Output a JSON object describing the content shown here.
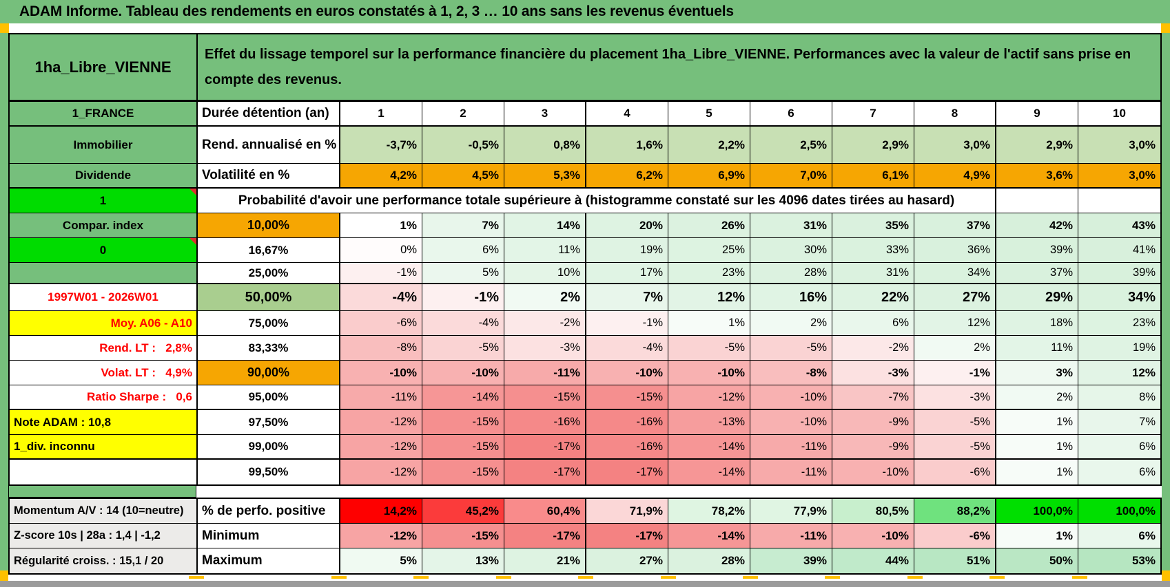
{
  "title": "ADAM Informe. Tableau des rendements en euros constatés à 1, 2, 3 … 10 ans sans les revenus éventuels",
  "asset": {
    "name": "1ha_Libre_VIENNE",
    "description": "Effet du lissage temporel sur la performance financière du placement 1ha_Libre_VIENNE. Performances avec la valeur de l'actif sans prise en compte des revenus."
  },
  "colors": {
    "frame_green": "#76BF7C",
    "bright_green": "#00DC00",
    "orange": "#F6A602",
    "yellow": "#FFFF00",
    "red_text": "#FF0000",
    "annualized_bg": "#C8E0B4",
    "pct50_bg": "#A9CE8F",
    "gray_label_bg": "#ECEBE9",
    "page_break_marker": "#FFC000",
    "bottom_bar": "#9B9B9B"
  },
  "table": {
    "rows": [
      {
        "type": "cols",
        "rcls": "r-hdr",
        "bold": true,
        "left": {
          "text": "1_FRANCE",
          "cls": "l-green"
        },
        "mid": {
          "text": "Durée détention (an)",
          "cls": "m-name"
        },
        "cols": [
          "1",
          "2",
          "3",
          "4",
          "5",
          "6",
          "7",
          "8",
          "9",
          "10"
        ],
        "thickB": true
      },
      {
        "type": "cells",
        "rcls": "r-tall",
        "bold": true,
        "left": {
          "text": "Immobilier",
          "cls": "l-green"
        },
        "mid": {
          "text": "Rend. annualisé en %",
          "cls": "m-name"
        },
        "cells": [
          [
            "-3,7%",
            "#C8E0B4"
          ],
          [
            "-0,5%",
            "#C8E0B4"
          ],
          [
            "0,8%",
            "#C8E0B4"
          ],
          [
            "1,6%",
            "#C8E0B4"
          ],
          [
            "2,2%",
            "#C8E0B4"
          ],
          [
            "2,5%",
            "#C8E0B4"
          ],
          [
            "2,9%",
            "#C8E0B4"
          ],
          [
            "3,0%",
            "#C8E0B4"
          ],
          [
            "2,9%",
            "#C8E0B4"
          ],
          [
            "3,0%",
            "#C8E0B4"
          ]
        ]
      },
      {
        "type": "cells",
        "rcls": "r-std",
        "bold": true,
        "thickB": true,
        "left": {
          "text": "Dividende",
          "cls": "l-green"
        },
        "mid": {
          "text": "Volatilité en %",
          "cls": "m-name"
        },
        "cells": [
          [
            "4,2%",
            "#F6A602"
          ],
          [
            "4,5%",
            "#F6A602"
          ],
          [
            "5,3%",
            "#F6A602"
          ],
          [
            "6,2%",
            "#F6A602"
          ],
          [
            "6,9%",
            "#F6A602"
          ],
          [
            "7,0%",
            "#F6A602"
          ],
          [
            "6,1%",
            "#F6A602"
          ],
          [
            "4,9%",
            "#F6A602"
          ],
          [
            "3,6%",
            "#F6A602"
          ],
          [
            "3,0%",
            "#F6A602"
          ]
        ]
      },
      {
        "type": "merged",
        "rcls": "r-std",
        "left": {
          "text": "1",
          "cls": "l-bright",
          "comment": true
        },
        "merged_text": "Probabilité d'avoir une performance totale supérieure à (histogramme constaté sur les 4096 dates tirées au hasard)",
        "trailing": [
          [
            "",
            ""
          ],
          [
            "",
            ""
          ]
        ]
      },
      {
        "type": "cells",
        "rcls": "r-std",
        "bold": true,
        "left": {
          "text": "Compar. index",
          "cls": "l-green"
        },
        "mid": {
          "text": "10,00%",
          "cls": "m-orange"
        },
        "cells": [
          [
            "1%",
            "#FFFFFF"
          ],
          [
            "7%",
            "#E8F6EB"
          ],
          [
            "14%",
            "#E1F4E5"
          ],
          [
            "20%",
            "#DEF3E2"
          ],
          [
            "26%",
            "#DCF2E0"
          ],
          [
            "31%",
            "#DBF2DF"
          ],
          [
            "35%",
            "#DAF1DE"
          ],
          [
            "37%",
            "#D9F1DD"
          ],
          [
            "42%",
            "#D7F0DB"
          ],
          [
            "43%",
            "#D7F0DB"
          ]
        ]
      },
      {
        "type": "cells",
        "rcls": "r-std",
        "left": {
          "text": "0",
          "cls": "l-bright",
          "comment": true
        },
        "mid": {
          "text": "16,67%",
          "cls": "m-pct"
        },
        "cells": [
          [
            "0%",
            "#FFFCFC"
          ],
          [
            "6%",
            "#E9F7EC"
          ],
          [
            "11%",
            "#E3F5E7"
          ],
          [
            "19%",
            "#DFF3E3"
          ],
          [
            "25%",
            "#DDF3E1"
          ],
          [
            "30%",
            "#DBF2DF"
          ],
          [
            "33%",
            "#DAF2DE"
          ],
          [
            "36%",
            "#D9F1DD"
          ],
          [
            "39%",
            "#D8F1DC"
          ],
          [
            "41%",
            "#D8F0DC"
          ]
        ]
      },
      {
        "type": "cells",
        "rcls": "r-short",
        "thickB": true,
        "left": {
          "text": "",
          "cls": "l-green"
        },
        "mid": {
          "text": "25,00%",
          "cls": "m-pct"
        },
        "cells": [
          [
            "-1%",
            "#FDF0F0"
          ],
          [
            "5%",
            "#EBF7EE"
          ],
          [
            "10%",
            "#E4F5E7"
          ],
          [
            "17%",
            "#E0F4E4"
          ],
          [
            "23%",
            "#DDF3E1"
          ],
          [
            "28%",
            "#DCF2E0"
          ],
          [
            "31%",
            "#DBF2DF"
          ],
          [
            "34%",
            "#DAF2DE"
          ],
          [
            "37%",
            "#D9F1DD"
          ],
          [
            "39%",
            "#D8F1DC"
          ]
        ]
      },
      {
        "type": "cells",
        "rcls": "r-big",
        "bold": true,
        "left": {
          "text": "1997W01 - 2026W01",
          "cls": "l-redwhite"
        },
        "mid": {
          "text": "50,00%",
          "cls": "m-green50"
        },
        "cells": [
          [
            "-4%",
            "#FBDADA"
          ],
          [
            "-1%",
            "#FDF0F0"
          ],
          [
            "2%",
            "#F1FAF3"
          ],
          [
            "7%",
            "#E8F6EB"
          ],
          [
            "12%",
            "#E2F4E6"
          ],
          [
            "16%",
            "#E0F4E4"
          ],
          [
            "22%",
            "#DEF3E2"
          ],
          [
            "27%",
            "#DCF2E0"
          ],
          [
            "29%",
            "#DBF2DF"
          ],
          [
            "34%",
            "#DAF2DE"
          ]
        ]
      },
      {
        "type": "cells",
        "rcls": "r-std",
        "left": {
          "text": "Moy. A06 - A10",
          "cls": "l-redyellow"
        },
        "mid": {
          "text": "75,00%",
          "cls": "m-pct"
        },
        "cells": [
          [
            "-6%",
            "#FACCCC"
          ],
          [
            "-4%",
            "#FBDADA"
          ],
          [
            "-2%",
            "#FCE8E8"
          ],
          [
            "-1%",
            "#FDF0F0"
          ],
          [
            "1%",
            "#F7FCF8"
          ],
          [
            "2%",
            "#F1FAF3"
          ],
          [
            "6%",
            "#E9F7EC"
          ],
          [
            "12%",
            "#E2F4E6"
          ],
          [
            "18%",
            "#DFF3E3"
          ],
          [
            "23%",
            "#DDF3E1"
          ]
        ]
      },
      {
        "type": "cells",
        "rcls": "r-std",
        "left": {
          "text": "Rend. LT :   2,8%",
          "cls": "l-redwhite-r"
        },
        "mid": {
          "text": "83,33%",
          "cls": "m-pct"
        },
        "cells": [
          [
            "-8%",
            "#F9BEBE"
          ],
          [
            "-5%",
            "#FAD3D3"
          ],
          [
            "-3%",
            "#FCE1E1"
          ],
          [
            "-4%",
            "#FBDADA"
          ],
          [
            "-5%",
            "#FAD3D3"
          ],
          [
            "-5%",
            "#FAD3D3"
          ],
          [
            "-2%",
            "#FCE8E8"
          ],
          [
            "2%",
            "#F1FAF3"
          ],
          [
            "11%",
            "#E3F5E7"
          ],
          [
            "19%",
            "#DFF3E3"
          ]
        ]
      },
      {
        "type": "cells",
        "rcls": "r-std",
        "bold": true,
        "left": {
          "text": "Volat. LT :   4,9%",
          "cls": "l-redwhite-r"
        },
        "mid": {
          "text": "90,00%",
          "cls": "m-orange"
        },
        "cells": [
          [
            "-10%",
            "#F8B1B1"
          ],
          [
            "-10%",
            "#F8B1B1"
          ],
          [
            "-11%",
            "#F7AAAA"
          ],
          [
            "-10%",
            "#F8B1B1"
          ],
          [
            "-10%",
            "#F8B1B1"
          ],
          [
            "-8%",
            "#F9BEBE"
          ],
          [
            "-3%",
            "#FCE1E1"
          ],
          [
            "-1%",
            "#FDF0F0"
          ],
          [
            "3%",
            "#EFF9F1"
          ],
          [
            "12%",
            "#E2F4E6"
          ]
        ]
      },
      {
        "type": "cells",
        "rcls": "r-std",
        "thickB": true,
        "left": {
          "text": "Ratio Sharpe :   0,6",
          "cls": "l-redwhite-r"
        },
        "mid": {
          "text": "95,00%",
          "cls": "m-pct"
        },
        "cells": [
          [
            "-11%",
            "#F7AAAA"
          ],
          [
            "-14%",
            "#F69696"
          ],
          [
            "-15%",
            "#F58F8F"
          ],
          [
            "-15%",
            "#F58F8F"
          ],
          [
            "-12%",
            "#F7A4A4"
          ],
          [
            "-10%",
            "#F8B1B1"
          ],
          [
            "-7%",
            "#F9C5C5"
          ],
          [
            "-3%",
            "#FCE1E1"
          ],
          [
            "2%",
            "#F1FAF3"
          ],
          [
            "8%",
            "#E6F6E9"
          ]
        ]
      },
      {
        "type": "cells",
        "rcls": "r-std",
        "left": {
          "text": "Note ADAM : 10,8",
          "cls": "l-yellow-l"
        },
        "mid": {
          "text": "97,50%",
          "cls": "m-pct"
        },
        "cells": [
          [
            "-12%",
            "#F7A4A4"
          ],
          [
            "-15%",
            "#F58F8F"
          ],
          [
            "-16%",
            "#F58989"
          ],
          [
            "-16%",
            "#F58989"
          ],
          [
            "-13%",
            "#F69D9D"
          ],
          [
            "-10%",
            "#F8B1B1"
          ],
          [
            "-9%",
            "#F8B8B8"
          ],
          [
            "-5%",
            "#FAD3D3"
          ],
          [
            "1%",
            "#F7FCF8"
          ],
          [
            "7%",
            "#E8F6EB"
          ]
        ]
      },
      {
        "type": "cells",
        "rcls": "r-std",
        "thickB": true,
        "left": {
          "text": "1_div. inconnu",
          "cls": "l-yellow-l"
        },
        "mid": {
          "text": "99,00%",
          "cls": "m-pct"
        },
        "cells": [
          [
            "-12%",
            "#F7A4A4"
          ],
          [
            "-15%",
            "#F58F8F"
          ],
          [
            "-17%",
            "#F48282"
          ],
          [
            "-16%",
            "#F58989"
          ],
          [
            "-14%",
            "#F69696"
          ],
          [
            "-11%",
            "#F7AAAA"
          ],
          [
            "-9%",
            "#F8B8B8"
          ],
          [
            "-5%",
            "#FAD3D3"
          ],
          [
            "1%",
            "#F7FCF8"
          ],
          [
            "6%",
            "#E9F7EC"
          ]
        ]
      },
      {
        "type": "cells",
        "rcls": "r-std",
        "left": {
          "text": "",
          "cls": "l-white"
        },
        "mid": {
          "text": "99,50%",
          "cls": "m-pct"
        },
        "cells": [
          [
            "-12%",
            "#F7A4A4"
          ],
          [
            "-15%",
            "#F58F8F"
          ],
          [
            "-17%",
            "#F48282"
          ],
          [
            "-17%",
            "#F48282"
          ],
          [
            "-14%",
            "#F69696"
          ],
          [
            "-11%",
            "#F7AAAA"
          ],
          [
            "-10%",
            "#F8B1B1"
          ],
          [
            "-6%",
            "#FACCCC"
          ],
          [
            "1%",
            "#F7FCF8"
          ],
          [
            "6%",
            "#E9F7EC"
          ]
        ]
      }
    ],
    "bottom_rows": [
      {
        "type": "cells",
        "rcls": "r-std",
        "bold": true,
        "left": {
          "text": "Momentum A/V : 14 (10=neutre)",
          "cls": "l-gray"
        },
        "mid": {
          "text": "% de perfo. positive",
          "cls": "m-name"
        },
        "cells": [
          [
            "14,2%",
            "#FE0000"
          ],
          [
            "45,2%",
            "#FB3B3B"
          ],
          [
            "60,4%",
            "#F98B8B"
          ],
          [
            "71,9%",
            "#FBD7D7"
          ],
          [
            "78,2%",
            "#DFF5E2"
          ],
          [
            "77,9%",
            "#E0F5E3"
          ],
          [
            "80,5%",
            "#C8EFCD"
          ],
          [
            "88,2%",
            "#6FE27E"
          ],
          [
            "100,0%",
            "#00DF00"
          ],
          [
            "100,0%",
            "#00DF00"
          ]
        ]
      },
      {
        "type": "cells",
        "rcls": "r-std",
        "bold": true,
        "left": {
          "text": "Z-score 10s | 28a : 1,4 | -1,2",
          "cls": "l-gray"
        },
        "mid": {
          "text": "Minimum",
          "cls": "m-name"
        },
        "cells": [
          [
            "-12%",
            "#F7A4A4"
          ],
          [
            "-15%",
            "#F58F8F"
          ],
          [
            "-17%",
            "#F48282"
          ],
          [
            "-17%",
            "#F48282"
          ],
          [
            "-14%",
            "#F69696"
          ],
          [
            "-11%",
            "#F7AAAA"
          ],
          [
            "-10%",
            "#F8B1B1"
          ],
          [
            "-6%",
            "#FACCCC"
          ],
          [
            "1%",
            "#F7FCF8"
          ],
          [
            "6%",
            "#E9F7EC"
          ]
        ]
      },
      {
        "type": "cells",
        "rcls": "r-std",
        "bold": true,
        "left": {
          "text": "Régularité croiss. : 15,1 / 20",
          "cls": "l-gray"
        },
        "mid": {
          "text": "Maximum",
          "cls": "m-name"
        },
        "cells": [
          [
            "5%",
            "#F0FAF2"
          ],
          [
            "13%",
            "#E4F5E8"
          ],
          [
            "21%",
            "#DEF3E2"
          ],
          [
            "27%",
            "#DBF2DF"
          ],
          [
            "28%",
            "#DBF2DF"
          ],
          [
            "39%",
            "#C7ECD0"
          ],
          [
            "44%",
            "#C0EACA"
          ],
          [
            "51%",
            "#B8E7C3"
          ],
          [
            "50%",
            "#BAE7C4"
          ],
          [
            "53%",
            "#B6E6C1"
          ]
        ]
      }
    ]
  }
}
